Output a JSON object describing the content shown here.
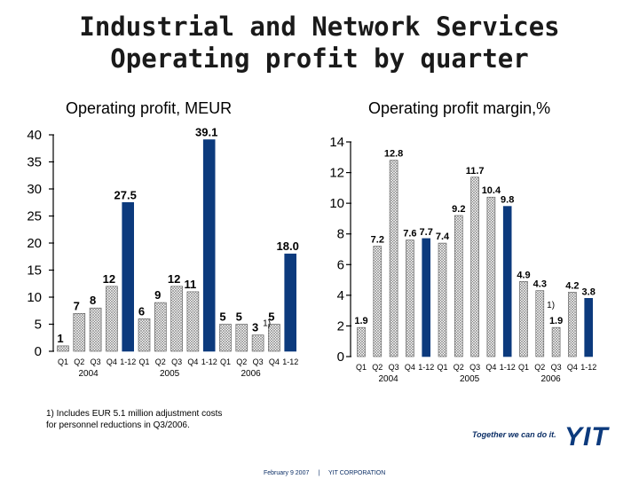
{
  "title": {
    "line1": "Industrial and Network Services",
    "line2": "Operating profit by quarter"
  },
  "footnote": {
    "line1": "1) Includes EUR 5.1 million adjustment costs",
    "line2": "for personnel reductions in Q3/2006."
  },
  "tagline": "Together we can do it.",
  "logo": "YIT",
  "footer": {
    "date": "February 9 2007",
    "separator": "|",
    "company": "YIT CORPORATION"
  },
  "colors": {
    "hatched": "#d8d8d8",
    "solid": "#0c3a7d",
    "highlight": "#1a5aa8"
  },
  "chart_data": [
    {
      "type": "bar",
      "title": "Operating profit, MEUR",
      "ylim": [
        0,
        40
      ],
      "yticks": [
        0,
        5,
        10,
        15,
        20,
        25,
        30,
        35,
        40
      ],
      "categories": [
        "Q1",
        "Q2",
        "Q3",
        "Q4",
        "1-12",
        "Q1",
        "Q2",
        "Q3",
        "Q4",
        "1-12",
        "Q1",
        "Q2",
        "Q3",
        "Q4",
        "1-12"
      ],
      "values": [
        1,
        7,
        8,
        12,
        27.5,
        6,
        9,
        12,
        11,
        39.1,
        5,
        5,
        3,
        5,
        18.0
      ],
      "labels": [
        "1",
        "7",
        "8",
        "12",
        "27.5",
        "6",
        "9",
        "12",
        "11",
        "39.1",
        "5",
        "5",
        "3",
        "5",
        "18.0"
      ],
      "styles": [
        "h",
        "h",
        "h",
        "h",
        "s",
        "h",
        "h",
        "h",
        "h",
        "s",
        "h",
        "h",
        "h",
        "h",
        "s"
      ],
      "year_labels": [
        "2004",
        "2005",
        "2006"
      ],
      "annotation": "1)"
    },
    {
      "type": "bar",
      "title": "Operating profit margin,%",
      "ylim": [
        0,
        14
      ],
      "yticks": [
        0,
        2,
        4,
        6,
        8,
        10,
        12,
        14
      ],
      "categories": [
        "Q1",
        "Q2",
        "Q3",
        "Q4",
        "1-12",
        "Q1",
        "Q2",
        "Q3",
        "Q4",
        "1-12",
        "Q1",
        "Q2",
        "Q3",
        "Q4",
        "1-12"
      ],
      "values": [
        1.9,
        7.2,
        12.8,
        7.6,
        7.7,
        7.4,
        9.2,
        11.7,
        10.4,
        9.8,
        4.9,
        4.3,
        1.9,
        4.2,
        3.8
      ],
      "labels": [
        "1.9",
        "7.2",
        "12.8",
        "7.6",
        "7.7",
        "7.4",
        "9.2",
        "11.7",
        "10.4",
        "9.8",
        "4.9",
        "4.3",
        "1.9",
        "4.2",
        "3.8"
      ],
      "styles": [
        "h",
        "h",
        "h",
        "h",
        "s",
        "h",
        "h",
        "h",
        "h",
        "s",
        "h",
        "h",
        "h",
        "h",
        "s"
      ],
      "year_labels": [
        "2004",
        "2005",
        "2006"
      ],
      "annotation": "1)"
    }
  ]
}
